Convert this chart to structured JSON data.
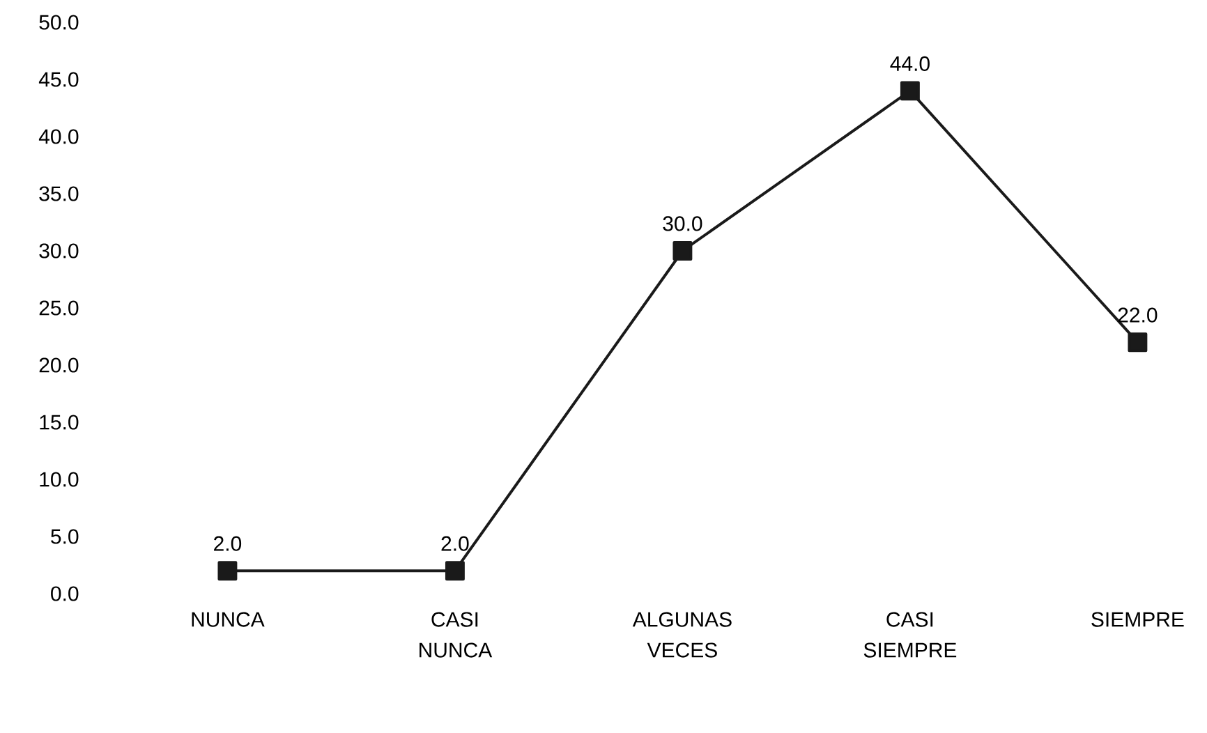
{
  "chart_data": {
    "type": "line",
    "categories": [
      "NUNCA",
      "CASI NUNCA",
      "ALGUNAS VECES",
      "CASI SIEMPRE",
      "SIEMPRE"
    ],
    "values": [
      2.0,
      2.0,
      30.0,
      44.0,
      22.0
    ],
    "value_labels": [
      "2.0",
      "2.0",
      "30.0",
      "44.0",
      "22.0"
    ],
    "color": "#1a1a1a",
    "marker": "square",
    "line_style": "solid",
    "grid": false,
    "ylim": [
      0,
      50
    ],
    "yticks": [
      {
        "value": 0,
        "label": "0.0"
      },
      {
        "value": 5,
        "label": "5.0"
      },
      {
        "value": 10,
        "label": "10.0"
      },
      {
        "value": 15,
        "label": "15.0"
      },
      {
        "value": 20,
        "label": "20.0"
      },
      {
        "value": 25,
        "label": "25.0"
      },
      {
        "value": 30,
        "label": "30.0"
      },
      {
        "value": 35,
        "label": "35.0"
      },
      {
        "value": 40,
        "label": "40.0"
      },
      {
        "value": 45,
        "label": "45.0"
      },
      {
        "value": 50,
        "label": "50.0"
      }
    ]
  }
}
